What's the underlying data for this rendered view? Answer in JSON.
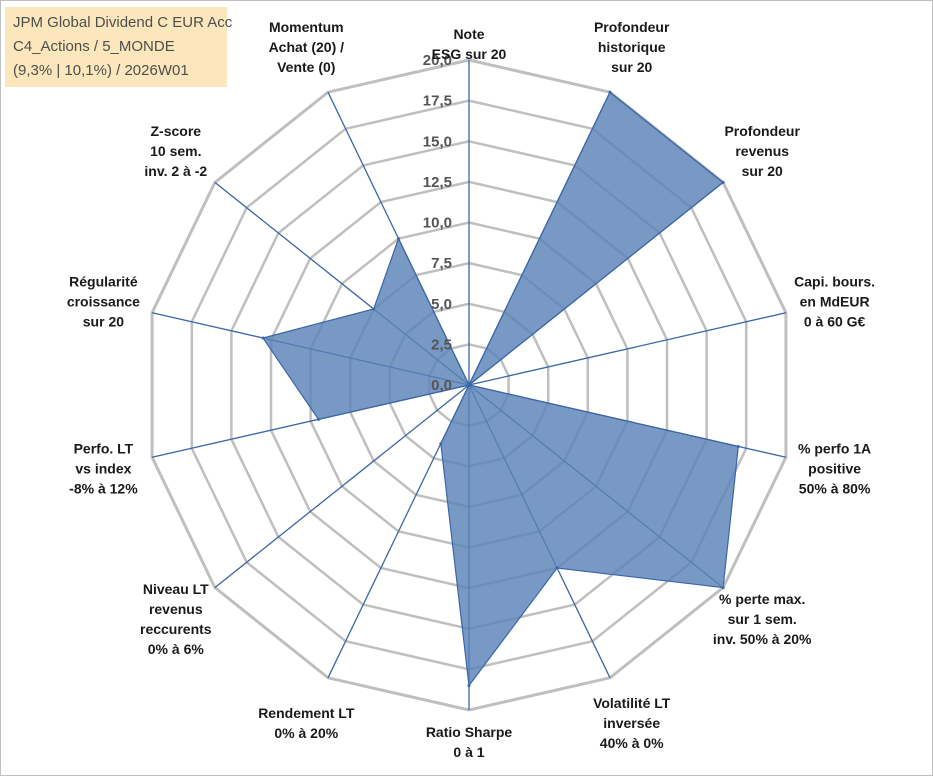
{
  "chart_data": {
    "type": "radar",
    "title_lines": [
      "JPM Global Dividend C EUR Acc",
      "C4_Actions / 5_MONDE",
      "(9,3% | 10,1%) / 2026W01"
    ],
    "r_range": [
      0,
      20
    ],
    "ticks": [
      "0,0",
      "2,5",
      "5,0",
      "7,5",
      "10,0",
      "12,5",
      "15,0",
      "17,5",
      "20,0"
    ],
    "tick_values": [
      0,
      2.5,
      5,
      7.5,
      10,
      12.5,
      15,
      17.5,
      20
    ],
    "grid": true,
    "fill_color": "#5a83b6",
    "line_color": "#3b66a8",
    "grid_color": "#bfbfbf",
    "axes": [
      {
        "label": "Note\nESG sur 20",
        "value": 0
      },
      {
        "label": "Profondeur\nhistorique\nsur 20",
        "value": 20
      },
      {
        "label": "Profondeur\nrevenus\nsur 20",
        "value": 20
      },
      {
        "label": "Capi. bours.\nen MdEUR\n0 à 60 G€",
        "value": 0
      },
      {
        "label": "% perfo 1A\npositive\n50% à 80%",
        "value": 17
      },
      {
        "label": "% perte max.\nsur 1 sem.\ninv. 50% à 20%",
        "value": 20
      },
      {
        "label": "Volatilité LT\ninversée\n40% à 0%",
        "value": 12.5
      },
      {
        "label": "Ratio Sharpe\n0 à 1",
        "value": 18.5
      },
      {
        "label": "Rendement LT\n0% à 20%",
        "value": 4
      },
      {
        "label": "Niveau LT\nrevenus\nreccurents\n0% à 6%",
        "value": 0
      },
      {
        "label": "Perfo. LT\nvs index\n-8% à 12%",
        "value": 9.5
      },
      {
        "label": "Régularité\ncroissance\nsur 20",
        "value": 13
      },
      {
        "label": "Z-score\n10 sem.\ninv. 2 à -2",
        "value": 7.5
      },
      {
        "label": "Momentum\nAchat (20) /\nVente (0)",
        "value": 10
      }
    ]
  }
}
